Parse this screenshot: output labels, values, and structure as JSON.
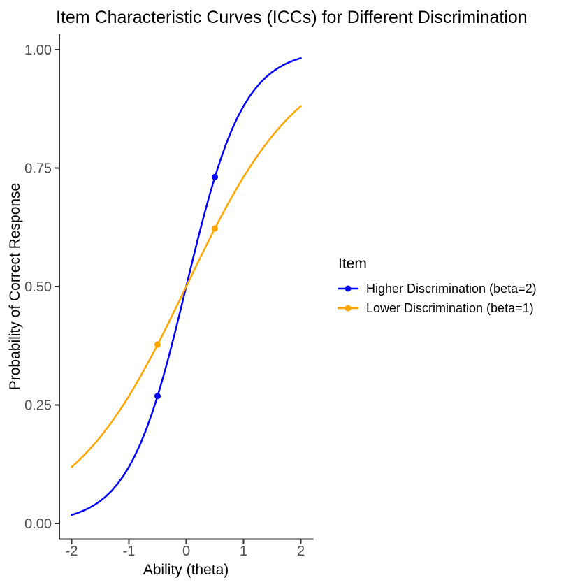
{
  "chart_data": {
    "type": "line",
    "title": "Item Characteristic Curves (ICCs) for Different Discrimination",
    "xlabel": "Ability (theta)",
    "ylabel": "Probability of Correct Response",
    "xlim": [
      -2.2,
      2.2
    ],
    "ylim": [
      -0.035,
      1.035
    ],
    "grid": false,
    "xtick_values": [
      -2,
      -1,
      0,
      1,
      2
    ],
    "xtick_labels": [
      "-2",
      "-1",
      "0",
      "1",
      "2"
    ],
    "ytick_values": [
      0,
      0.25,
      0.5,
      0.75,
      1
    ],
    "ytick_labels": [
      "0.00",
      "0.25",
      "0.50",
      "0.75",
      "1.00"
    ],
    "legend": {
      "title": "Item",
      "position": "right"
    },
    "x_values": [
      -2,
      -1.9,
      -1.8,
      -1.7,
      -1.6,
      -1.5,
      -1.4,
      -1.3,
      -1.2,
      -1.1,
      -1,
      -0.9,
      -0.8,
      -0.7,
      -0.6,
      -0.5,
      -0.4,
      -0.3,
      -0.2,
      -0.1,
      0,
      0.1,
      0.2,
      0.3,
      0.4,
      0.5,
      0.6,
      0.7,
      0.8,
      0.9,
      1,
      1.1,
      1.2,
      1.3,
      1.4,
      1.5,
      1.6,
      1.7,
      1.8,
      1.9,
      2
    ],
    "series": [
      {
        "name": "Higher Discrimination (beta=2)",
        "beta": 2,
        "color": "#0000FF",
        "y": [
          0.018,
          0.0219,
          0.0266,
          0.0323,
          0.0392,
          0.0474,
          0.0573,
          0.0691,
          0.0832,
          0.0998,
          0.1192,
          0.1419,
          0.168,
          0.1978,
          0.2315,
          0.2689,
          0.31,
          0.3543,
          0.4013,
          0.4502,
          0.5,
          0.5498,
          0.5987,
          0.6457,
          0.69,
          0.7311,
          0.7685,
          0.8022,
          0.832,
          0.8581,
          0.8808,
          0.9002,
          0.9168,
          0.9309,
          0.9427,
          0.9526,
          0.9608,
          0.9677,
          0.9734,
          0.9781,
          0.982
        ],
        "marked_points": [
          {
            "x": -0.5,
            "y": 0.2689
          },
          {
            "x": 0.5,
            "y": 0.7311
          }
        ]
      },
      {
        "name": "Lower Discrimination (beta=1)",
        "beta": 1,
        "color": "#FFA500",
        "y": [
          0.1192,
          0.1301,
          0.1419,
          0.1545,
          0.168,
          0.1824,
          0.1978,
          0.2142,
          0.2315,
          0.2497,
          0.2689,
          0.2891,
          0.31,
          0.3318,
          0.3543,
          0.3775,
          0.4013,
          0.4256,
          0.4502,
          0.475,
          0.5,
          0.525,
          0.5498,
          0.5744,
          0.5987,
          0.6225,
          0.6457,
          0.6682,
          0.69,
          0.7109,
          0.7311,
          0.7503,
          0.7685,
          0.7858,
          0.8022,
          0.8176,
          0.832,
          0.8455,
          0.8581,
          0.8699,
          0.8808
        ],
        "marked_points": [
          {
            "x": -0.5,
            "y": 0.3775
          },
          {
            "x": 0.5,
            "y": 0.6225
          }
        ]
      }
    ],
    "colors": {
      "axis_line": "#333333",
      "tick_mark": "#333333",
      "tick_label": "#4d4d4d",
      "text": "#000000",
      "background": "#ffffff"
    }
  }
}
